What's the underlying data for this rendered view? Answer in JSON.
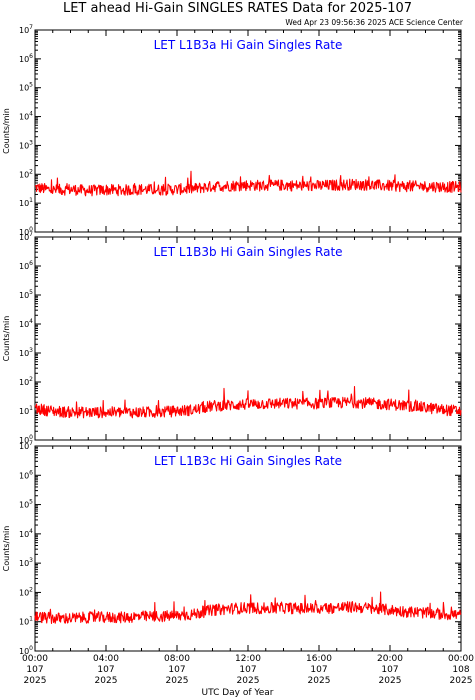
{
  "figure": {
    "title": "LET ahead Hi-Gain SINGLES RATES Data for 2025-107",
    "timestamp": "Wed Apr 23 09:56:36 2025 ACE Science Center",
    "xlabel": "UTC Day of Year"
  },
  "chart_data": [
    {
      "type": "line",
      "title": "LET L1B3a Hi Gain Singles Rate",
      "ylabel": "Counts/min",
      "yscale": "log",
      "ylim": [
        1,
        10000000
      ],
      "ytick_labels": [
        "10^0",
        "10^1",
        "10^2",
        "10^3",
        "10^4",
        "10^5",
        "10^6",
        "10^7"
      ],
      "xlim": [
        0,
        24
      ],
      "x_unit": "hours UTC, day 107 2025",
      "series": [
        {
          "color": "#ff0000",
          "x": [
            0,
            1,
            2,
            3,
            4,
            5,
            6,
            7,
            8,
            9,
            10,
            11,
            12,
            13,
            14,
            15,
            16,
            17,
            18,
            19,
            20,
            21,
            22,
            23,
            24
          ],
          "y": [
            35,
            28,
            30,
            27,
            29,
            28,
            30,
            29,
            30,
            32,
            38,
            40,
            42,
            40,
            42,
            40,
            40,
            42,
            45,
            42,
            40,
            38,
            38,
            37,
            36
          ]
        }
      ]
    },
    {
      "type": "line",
      "title": "LET L1B3b Hi Gain Singles Rate",
      "ylabel": "Counts/min",
      "yscale": "log",
      "ylim": [
        1,
        10000000
      ],
      "ytick_labels": [
        "10^0",
        "10^1",
        "10^2",
        "10^3",
        "10^4",
        "10^5",
        "10^6",
        "10^7"
      ],
      "xlim": [
        0,
        24
      ],
      "x_unit": "hours UTC, day 107 2025",
      "series": [
        {
          "color": "#ff0000",
          "x": [
            0,
            1,
            2,
            3,
            4,
            5,
            6,
            7,
            8,
            9,
            10,
            11,
            12,
            13,
            14,
            15,
            16,
            17,
            18,
            19,
            20,
            21,
            22,
            23,
            24
          ],
          "y": [
            12,
            10,
            9,
            9,
            9,
            9,
            9,
            9,
            10,
            11,
            15,
            16,
            17,
            18,
            18,
            18,
            18,
            19,
            20,
            18,
            17,
            15,
            13,
            11,
            10
          ]
        }
      ]
    },
    {
      "type": "line",
      "title": "LET L1B3c Hi Gain Singles Rate",
      "ylabel": "Counts/min",
      "yscale": "log",
      "ylim": [
        1,
        10000000
      ],
      "ytick_labels": [
        "10^0",
        "10^1",
        "10^2",
        "10^3",
        "10^4",
        "10^5",
        "10^6",
        "10^7"
      ],
      "xlim": [
        0,
        24
      ],
      "x_unit": "hours UTC, day 107 2025",
      "series": [
        {
          "color": "#ff0000",
          "x": [
            0,
            1,
            2,
            3,
            4,
            5,
            6,
            7,
            8,
            9,
            10,
            11,
            12,
            13,
            14,
            15,
            16,
            17,
            18,
            19,
            20,
            21,
            22,
            23,
            24
          ],
          "y": [
            15,
            13,
            13,
            14,
            14,
            14,
            15,
            15,
            16,
            18,
            25,
            28,
            30,
            28,
            30,
            28,
            28,
            30,
            32,
            28,
            25,
            22,
            20,
            18,
            17
          ]
        }
      ]
    }
  ],
  "x_ticks": [
    {
      "time": "00:00",
      "day": "107",
      "year": "2025"
    },
    {
      "time": "04:00",
      "day": "107",
      "year": "2025"
    },
    {
      "time": "08:00",
      "day": "107",
      "year": "2025"
    },
    {
      "time": "12:00",
      "day": "107",
      "year": "2025"
    },
    {
      "time": "16:00",
      "day": "107",
      "year": "2025"
    },
    {
      "time": "20:00",
      "day": "107",
      "year": "2025"
    },
    {
      "time": "00:00",
      "day": "108",
      "year": "2025"
    }
  ]
}
